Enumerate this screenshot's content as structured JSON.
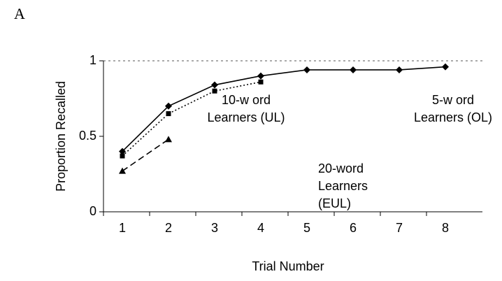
{
  "panel_label": "A",
  "chart_data": {
    "type": "line",
    "xlabel": "Trial Number",
    "ylabel": "Proportion Recalled",
    "categories": [
      "1",
      "2",
      "3",
      "4",
      "5",
      "6",
      "7",
      "8"
    ],
    "ylim": [
      0,
      1
    ],
    "yticks": [
      0,
      0.5,
      1
    ],
    "reference_line": 1,
    "series": [
      {
        "color": "#000000",
        "dash": "solid",
        "marker": "diamond",
        "values": [
          0.4,
          0.7,
          0.84,
          0.9,
          0.94,
          0.94,
          0.94,
          0.96
        ]
      },
      {
        "color": "#000000",
        "dash": "dotted",
        "marker": "square",
        "values": [
          0.37,
          0.65,
          0.8,
          0.86,
          null,
          null,
          null,
          null
        ]
      },
      {
        "color": "#000000",
        "dash": "dashed",
        "marker": "triangle",
        "values": [
          0.27,
          0.48,
          null,
          null,
          null,
          null,
          null,
          null
        ]
      }
    ],
    "annotations": [
      {
        "lines": [
          "10-w ord",
          "Learners (UL)"
        ]
      },
      {
        "lines": [
          "5-w ord",
          "Learners (OL)"
        ]
      },
      {
        "lines": [
          "20-word",
          "Learners",
          "(EUL)"
        ]
      }
    ]
  }
}
